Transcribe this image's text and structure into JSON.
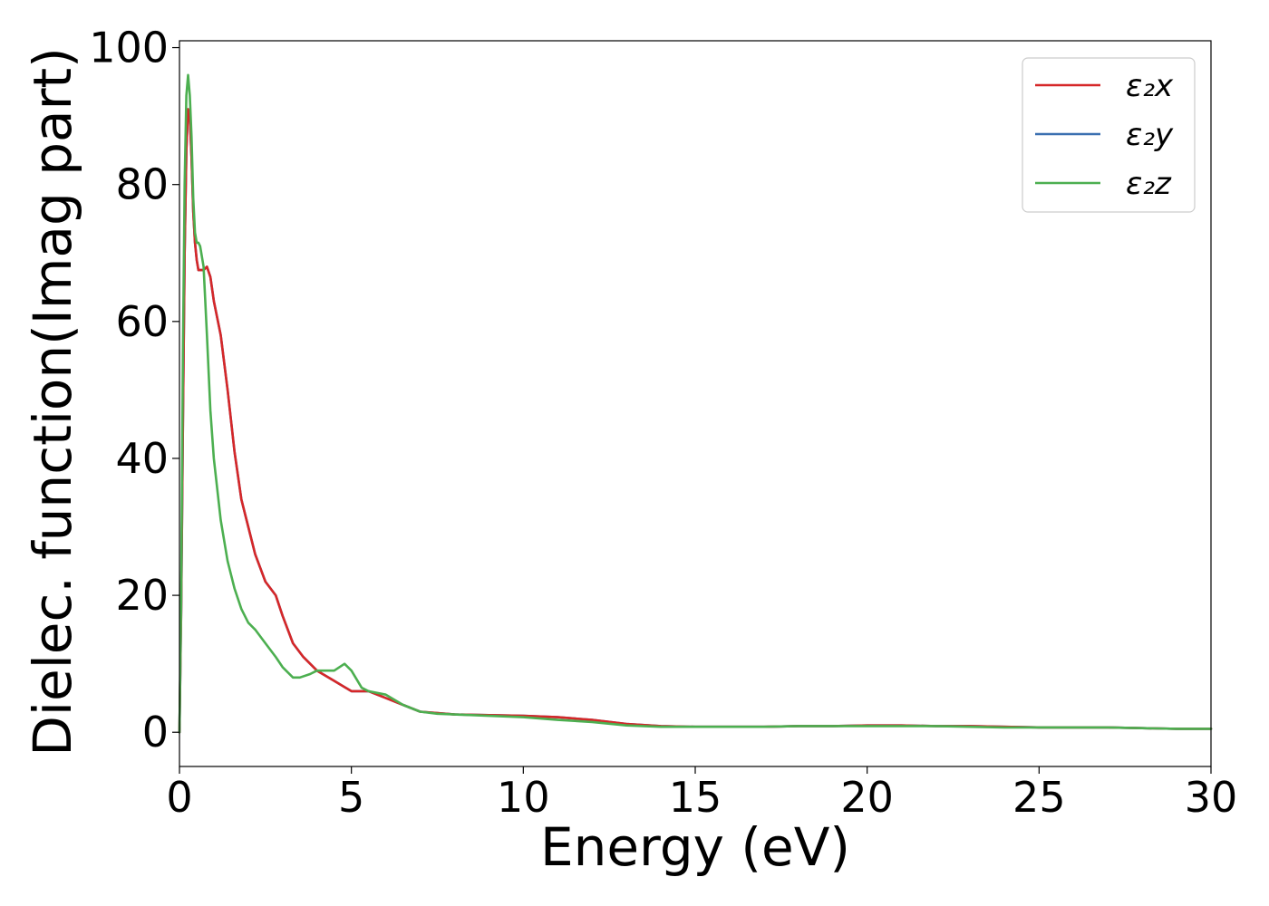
{
  "chart_data": {
    "type": "line",
    "title": "",
    "xlabel": "Energy (eV)",
    "ylabel": "Dielec. function(Imag part)",
    "xlim": [
      0,
      30
    ],
    "ylim": [
      -5,
      101
    ],
    "xticks": [
      0,
      5,
      10,
      15,
      20,
      25,
      30
    ],
    "yticks": [
      0,
      20,
      40,
      60,
      80,
      100
    ],
    "grid": false,
    "legend_position": "top-right",
    "series": [
      {
        "name": "ε₂x",
        "color": "#d62728",
        "x": [
          0,
          0.05,
          0.1,
          0.15,
          0.2,
          0.25,
          0.3,
          0.35,
          0.4,
          0.45,
          0.5,
          0.55,
          0.6,
          0.7,
          0.8,
          0.9,
          1.0,
          1.2,
          1.4,
          1.6,
          1.8,
          2.0,
          2.2,
          2.5,
          2.8,
          3.0,
          3.3,
          3.6,
          4.0,
          4.5,
          5.0,
          5.5,
          6.0,
          6.5,
          7.0,
          7.5,
          8.0,
          9.0,
          10.0,
          11.0,
          12.0,
          13.0,
          14.0,
          15.0,
          16.0,
          17.0,
          18.0,
          19.0,
          20.0,
          21.0,
          22.0,
          23.0,
          24.0,
          25.0,
          26.0,
          27.0,
          28.0,
          29.0,
          30.0
        ],
        "y": [
          0,
          18,
          45,
          70,
          85,
          91,
          90,
          84,
          76,
          71.5,
          69,
          67.5,
          67.5,
          67.5,
          68,
          66.5,
          63,
          58,
          50,
          41,
          34,
          30,
          26,
          22,
          20,
          17,
          13,
          11,
          9,
          7.5,
          6,
          6,
          5,
          4,
          3,
          2.8,
          2.6,
          2.5,
          2.4,
          2.2,
          1.8,
          1.2,
          0.9,
          0.8,
          0.8,
          0.8,
          0.9,
          0.9,
          1.0,
          1.0,
          0.9,
          0.9,
          0.8,
          0.7,
          0.7,
          0.7,
          0.6,
          0.5,
          0.5
        ]
      },
      {
        "name": "ε₂y",
        "color": "#3a6fb0",
        "x": [
          0,
          0.05,
          0.1,
          0.15,
          0.2,
          0.25,
          0.3,
          0.35,
          0.4,
          0.45,
          0.5,
          0.55,
          0.6,
          0.7,
          0.8,
          0.9,
          1.0,
          1.2,
          1.4,
          1.6,
          1.8,
          2.0,
          2.2,
          2.5,
          2.8,
          3.0,
          3.3,
          3.6,
          4.0,
          4.5,
          5.0,
          5.5,
          6.0,
          6.5,
          7.0,
          7.5,
          8.0,
          9.0,
          10.0,
          11.0,
          12.0,
          13.0,
          14.0,
          15.0,
          16.0,
          17.0,
          18.0,
          19.0,
          20.0,
          21.0,
          22.0,
          23.0,
          24.0,
          25.0,
          26.0,
          27.0,
          28.0,
          29.0,
          30.0
        ],
        "y": [
          0,
          18,
          45,
          70,
          85,
          91,
          90,
          84,
          76,
          71.5,
          69,
          67.5,
          67.5,
          67.5,
          68,
          66.5,
          63,
          58,
          50,
          41,
          34,
          30,
          26,
          22,
          20,
          17,
          13,
          11,
          9,
          7.5,
          6,
          6,
          5,
          4,
          3,
          2.8,
          2.6,
          2.5,
          2.4,
          2.2,
          1.8,
          1.2,
          0.9,
          0.8,
          0.8,
          0.8,
          0.9,
          0.9,
          1.0,
          1.0,
          0.9,
          0.9,
          0.8,
          0.7,
          0.7,
          0.7,
          0.6,
          0.5,
          0.5
        ]
      },
      {
        "name": "ε₂z",
        "color": "#4caf50",
        "x": [
          0,
          0.05,
          0.1,
          0.15,
          0.2,
          0.25,
          0.3,
          0.35,
          0.4,
          0.45,
          0.5,
          0.55,
          0.6,
          0.7,
          0.8,
          0.9,
          1.0,
          1.2,
          1.4,
          1.6,
          1.8,
          2.0,
          2.2,
          2.5,
          2.8,
          3.0,
          3.3,
          3.5,
          3.8,
          4.0,
          4.2,
          4.5,
          4.8,
          5.0,
          5.3,
          5.5,
          6.0,
          6.5,
          7.0,
          7.5,
          8.0,
          9.0,
          10.0,
          11.0,
          12.0,
          13.0,
          14.0,
          15.0,
          16.0,
          17.0,
          18.0,
          19.0,
          20.0,
          21.0,
          22.0,
          23.0,
          24.0,
          25.0,
          26.0,
          27.0,
          28.0,
          29.0,
          30.0
        ],
        "y": [
          0,
          20,
          55,
          80,
          93,
          96,
          93,
          87,
          78,
          73,
          71.5,
          71.5,
          71,
          68,
          58,
          47,
          40,
          31,
          25,
          21,
          18,
          16,
          15,
          13,
          11,
          9.5,
          8,
          8,
          8.5,
          9,
          9,
          9,
          10,
          9,
          6.5,
          6,
          5.5,
          4,
          3,
          2.7,
          2.6,
          2.4,
          2.2,
          1.8,
          1.5,
          1.0,
          0.8,
          0.8,
          0.8,
          0.8,
          0.9,
          0.9,
          0.9,
          0.9,
          0.9,
          0.8,
          0.7,
          0.7,
          0.7,
          0.7,
          0.6,
          0.5,
          0.5
        ]
      }
    ]
  }
}
